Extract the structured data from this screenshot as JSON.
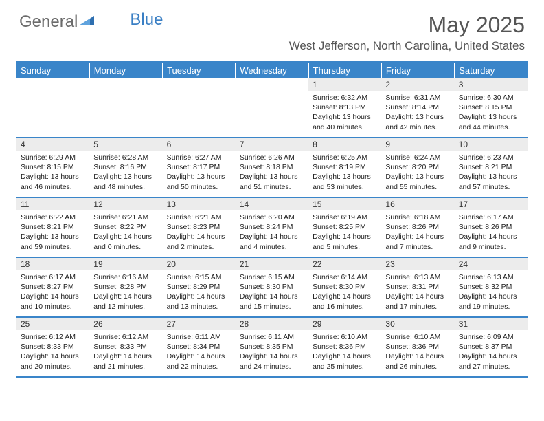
{
  "brand": {
    "part1": "General",
    "part2": "Blue"
  },
  "title": "May 2025",
  "location": "West Jefferson, North Carolina, United States",
  "colors": {
    "header_bg": "#3a85c9",
    "header_text": "#ffffff",
    "daynum_bg": "#ececec",
    "rule": "#3a85c9",
    "brand_gray": "#6b6b6b",
    "brand_blue": "#3a7fc4"
  },
  "day_headers": [
    "Sunday",
    "Monday",
    "Tuesday",
    "Wednesday",
    "Thursday",
    "Friday",
    "Saturday"
  ],
  "weeks": [
    {
      "nums": [
        "",
        "",
        "",
        "",
        "1",
        "2",
        "3"
      ],
      "cells": [
        null,
        null,
        null,
        null,
        {
          "sunrise": "6:32 AM",
          "sunset": "8:13 PM",
          "daylight": "13 hours and 40 minutes."
        },
        {
          "sunrise": "6:31 AM",
          "sunset": "8:14 PM",
          "daylight": "13 hours and 42 minutes."
        },
        {
          "sunrise": "6:30 AM",
          "sunset": "8:15 PM",
          "daylight": "13 hours and 44 minutes."
        }
      ]
    },
    {
      "nums": [
        "4",
        "5",
        "6",
        "7",
        "8",
        "9",
        "10"
      ],
      "cells": [
        {
          "sunrise": "6:29 AM",
          "sunset": "8:15 PM",
          "daylight": "13 hours and 46 minutes."
        },
        {
          "sunrise": "6:28 AM",
          "sunset": "8:16 PM",
          "daylight": "13 hours and 48 minutes."
        },
        {
          "sunrise": "6:27 AM",
          "sunset": "8:17 PM",
          "daylight": "13 hours and 50 minutes."
        },
        {
          "sunrise": "6:26 AM",
          "sunset": "8:18 PM",
          "daylight": "13 hours and 51 minutes."
        },
        {
          "sunrise": "6:25 AM",
          "sunset": "8:19 PM",
          "daylight": "13 hours and 53 minutes."
        },
        {
          "sunrise": "6:24 AM",
          "sunset": "8:20 PM",
          "daylight": "13 hours and 55 minutes."
        },
        {
          "sunrise": "6:23 AM",
          "sunset": "8:21 PM",
          "daylight": "13 hours and 57 minutes."
        }
      ]
    },
    {
      "nums": [
        "11",
        "12",
        "13",
        "14",
        "15",
        "16",
        "17"
      ],
      "cells": [
        {
          "sunrise": "6:22 AM",
          "sunset": "8:21 PM",
          "daylight": "13 hours and 59 minutes."
        },
        {
          "sunrise": "6:21 AM",
          "sunset": "8:22 PM",
          "daylight": "14 hours and 0 minutes."
        },
        {
          "sunrise": "6:21 AM",
          "sunset": "8:23 PM",
          "daylight": "14 hours and 2 minutes."
        },
        {
          "sunrise": "6:20 AM",
          "sunset": "8:24 PM",
          "daylight": "14 hours and 4 minutes."
        },
        {
          "sunrise": "6:19 AM",
          "sunset": "8:25 PM",
          "daylight": "14 hours and 5 minutes."
        },
        {
          "sunrise": "6:18 AM",
          "sunset": "8:26 PM",
          "daylight": "14 hours and 7 minutes."
        },
        {
          "sunrise": "6:17 AM",
          "sunset": "8:26 PM",
          "daylight": "14 hours and 9 minutes."
        }
      ]
    },
    {
      "nums": [
        "18",
        "19",
        "20",
        "21",
        "22",
        "23",
        "24"
      ],
      "cells": [
        {
          "sunrise": "6:17 AM",
          "sunset": "8:27 PM",
          "daylight": "14 hours and 10 minutes."
        },
        {
          "sunrise": "6:16 AM",
          "sunset": "8:28 PM",
          "daylight": "14 hours and 12 minutes."
        },
        {
          "sunrise": "6:15 AM",
          "sunset": "8:29 PM",
          "daylight": "14 hours and 13 minutes."
        },
        {
          "sunrise": "6:15 AM",
          "sunset": "8:30 PM",
          "daylight": "14 hours and 15 minutes."
        },
        {
          "sunrise": "6:14 AM",
          "sunset": "8:30 PM",
          "daylight": "14 hours and 16 minutes."
        },
        {
          "sunrise": "6:13 AM",
          "sunset": "8:31 PM",
          "daylight": "14 hours and 17 minutes."
        },
        {
          "sunrise": "6:13 AM",
          "sunset": "8:32 PM",
          "daylight": "14 hours and 19 minutes."
        }
      ]
    },
    {
      "nums": [
        "25",
        "26",
        "27",
        "28",
        "29",
        "30",
        "31"
      ],
      "cells": [
        {
          "sunrise": "6:12 AM",
          "sunset": "8:33 PM",
          "daylight": "14 hours and 20 minutes."
        },
        {
          "sunrise": "6:12 AM",
          "sunset": "8:33 PM",
          "daylight": "14 hours and 21 minutes."
        },
        {
          "sunrise": "6:11 AM",
          "sunset": "8:34 PM",
          "daylight": "14 hours and 22 minutes."
        },
        {
          "sunrise": "6:11 AM",
          "sunset": "8:35 PM",
          "daylight": "14 hours and 24 minutes."
        },
        {
          "sunrise": "6:10 AM",
          "sunset": "8:36 PM",
          "daylight": "14 hours and 25 minutes."
        },
        {
          "sunrise": "6:10 AM",
          "sunset": "8:36 PM",
          "daylight": "14 hours and 26 minutes."
        },
        {
          "sunrise": "6:09 AM",
          "sunset": "8:37 PM",
          "daylight": "14 hours and 27 minutes."
        }
      ]
    }
  ],
  "labels": {
    "sunrise": "Sunrise:",
    "sunset": "Sunset:",
    "daylight": "Daylight:"
  }
}
